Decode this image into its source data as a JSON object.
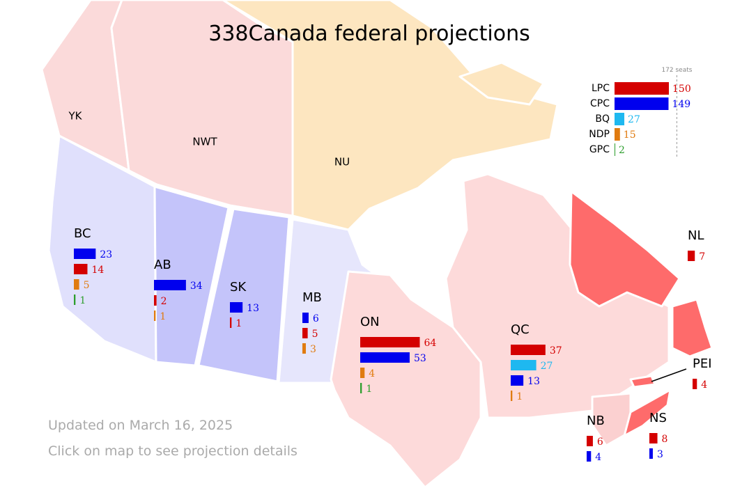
{
  "title": "338Canada federal projections",
  "national": {
    "threshold": {
      "value": 172,
      "label": "172 seats"
    },
    "parties": [
      {
        "name": "LPC",
        "color": "#d40000",
        "seats": 150
      },
      {
        "name": "CPC",
        "color": "#0000ee",
        "seats": 149
      },
      {
        "name": "BQ",
        "color": "#1eb8f0",
        "seats": 27
      },
      {
        "name": "NDP",
        "color": "#e07b10",
        "seats": 15
      },
      {
        "name": "GPC",
        "color": "#2e9e2e",
        "seats": 2
      }
    ]
  },
  "territories": [
    "YK",
    "NWT",
    "NU"
  ],
  "provinces": [
    {
      "name": "BC",
      "bars": [
        {
          "color": "#0000ee",
          "seats": 23
        },
        {
          "color": "#d40000",
          "seats": 14
        },
        {
          "color": "#e07b10",
          "seats": 5
        },
        {
          "color": "#2e9e2e",
          "seats": 1
        }
      ]
    },
    {
      "name": "AB",
      "bars": [
        {
          "color": "#0000ee",
          "seats": 34
        },
        {
          "color": "#d40000",
          "seats": 2
        },
        {
          "color": "#e07b10",
          "seats": 1
        }
      ]
    },
    {
      "name": "SK",
      "bars": [
        {
          "color": "#0000ee",
          "seats": 13
        },
        {
          "color": "#d40000",
          "seats": 1
        }
      ]
    },
    {
      "name": "MB",
      "bars": [
        {
          "color": "#0000ee",
          "seats": 6
        },
        {
          "color": "#d40000",
          "seats": 5
        },
        {
          "color": "#e07b10",
          "seats": 3
        }
      ]
    },
    {
      "name": "ON",
      "bars": [
        {
          "color": "#d40000",
          "seats": 64
        },
        {
          "color": "#0000ee",
          "seats": 53
        },
        {
          "color": "#e07b10",
          "seats": 4
        },
        {
          "color": "#2e9e2e",
          "seats": 1
        }
      ]
    },
    {
      "name": "QC",
      "bars": [
        {
          "color": "#d40000",
          "seats": 37
        },
        {
          "color": "#1eb8f0",
          "seats": 27
        },
        {
          "color": "#0000ee",
          "seats": 13
        },
        {
          "color": "#e07b10",
          "seats": 1
        }
      ]
    },
    {
      "name": "NL",
      "bars": [
        {
          "color": "#d40000",
          "seats": 7
        }
      ]
    },
    {
      "name": "PEI",
      "bars": [
        {
          "color": "#d40000",
          "seats": 4
        }
      ]
    },
    {
      "name": "NB",
      "bars": [
        {
          "color": "#d40000",
          "seats": 6
        },
        {
          "color": "#0000ee",
          "seats": 4
        }
      ]
    },
    {
      "name": "NS",
      "bars": [
        {
          "color": "#d40000",
          "seats": 8
        },
        {
          "color": "#0000ee",
          "seats": 3
        }
      ]
    }
  ],
  "updated": "Updated on March 16, 2025",
  "hint": "Click on map to see projection details"
}
